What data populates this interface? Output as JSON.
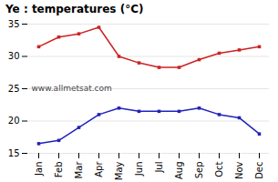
{
  "chart_data": {
    "type": "line",
    "title": "Ye : temperatures (°C)",
    "categories": [
      "Jan",
      "Feb",
      "Mar",
      "Apr",
      "May",
      "Jun",
      "Jul",
      "Aug",
      "Sep",
      "Oct",
      "Nov",
      "Dec"
    ],
    "series": [
      {
        "color": "#cc2222",
        "marker": "square",
        "values": [
          31.5,
          33.0,
          33.5,
          34.5,
          30.0,
          29.0,
          28.3,
          28.3,
          29.5,
          30.5,
          31.0,
          31.5
        ]
      },
      {
        "color": "#2222bb",
        "marker": "square",
        "values": [
          16.5,
          17.0,
          19.0,
          21.0,
          22.0,
          21.5,
          21.5,
          21.5,
          22.0,
          21.0,
          20.5,
          18.0
        ]
      }
    ],
    "ylim": [
      15,
      35
    ],
    "yticks": [
      15,
      20,
      25,
      30,
      35
    ],
    "grid": true,
    "annotations": [
      "www.allmetsat.com"
    ]
  }
}
